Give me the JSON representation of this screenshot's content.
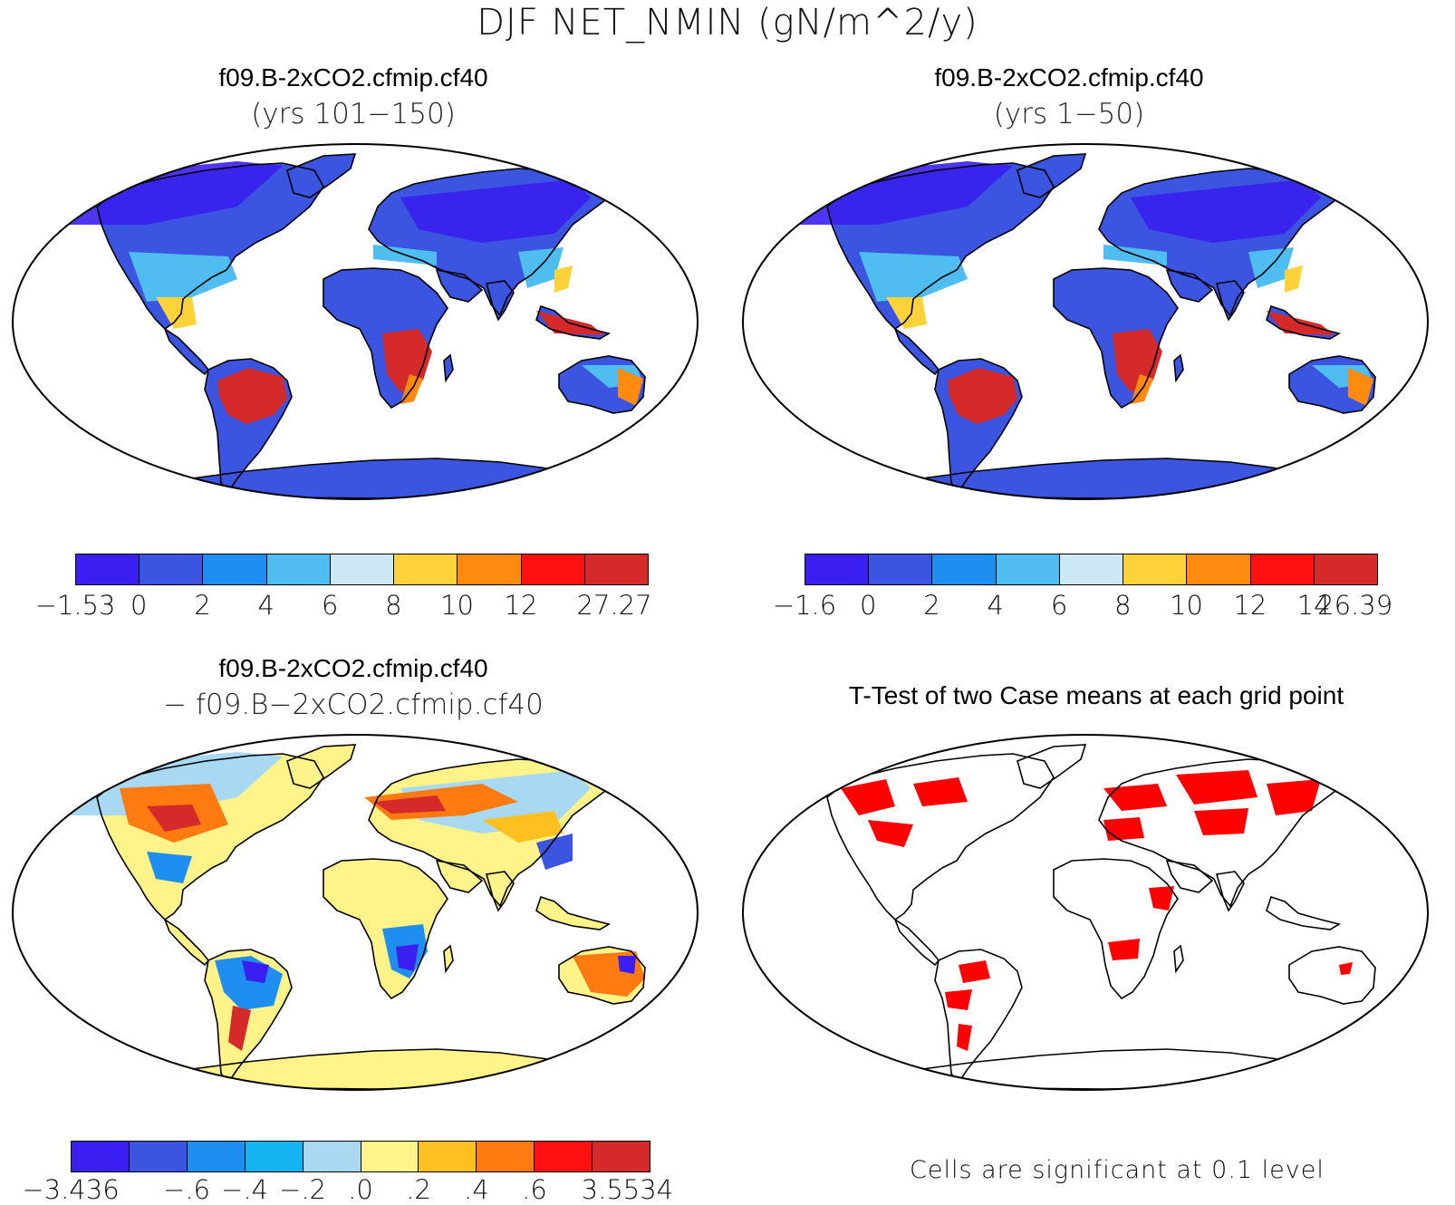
{
  "title": "DJF NET_NMIN (gN/m^2/y)",
  "panels": [
    {
      "id": "case1",
      "title": "f09.B-2xCO2.cfmip.cf40",
      "subtitle": "(yrs 101−150)",
      "colorbar": {
        "colors": [
          "#3a1ff0",
          "#3b55e0",
          "#1e8ff0",
          "#4fbdf0",
          "#cde8f5",
          "#ffd23a",
          "#ff8a10",
          "#ff1010",
          "#d42a2a"
        ],
        "labels": [
          "−1.53",
          "0",
          "2",
          "4",
          "6",
          "8",
          "10",
          "12",
          "",
          "27.27"
        ]
      }
    },
    {
      "id": "case2",
      "title": "f09.B-2xCO2.cfmip.cf40",
      "subtitle": "(yrs 1−50)",
      "colorbar": {
        "colors": [
          "#3a1ff0",
          "#3b55e0",
          "#1e8ff0",
          "#4fbdf0",
          "#cde8f5",
          "#ffd23a",
          "#ff8a10",
          "#ff1010",
          "#d42a2a"
        ],
        "labels": [
          "−1.6",
          "0",
          "2",
          "4",
          "6",
          "8",
          "10",
          "12",
          "14",
          "26.39"
        ]
      }
    },
    {
      "id": "difference",
      "title": "f09.B-2xCO2.cfmip.cf40",
      "subtitle": "− f09.B−2xCO2.cfmip.cf40",
      "colorbar": {
        "colors": [
          "#3a1ff0",
          "#3b55e0",
          "#1e8ff0",
          "#14b4f0",
          "#a8d8f2",
          "#fff38a",
          "#ffc020",
          "#ff7a10",
          "#ff1010",
          "#d42a2a"
        ],
        "labels": [
          "−3.436",
          "",
          "−.6",
          "−.4",
          "−.2",
          ".0",
          ".2",
          ".4",
          ".6",
          "",
          "3.5534"
        ]
      }
    },
    {
      "id": "ttest",
      "title": "T-Test of two Case means at each grid point",
      "footnote": "Cells are significant at 0.1 level",
      "significant_color": "#ff0000"
    }
  ]
}
